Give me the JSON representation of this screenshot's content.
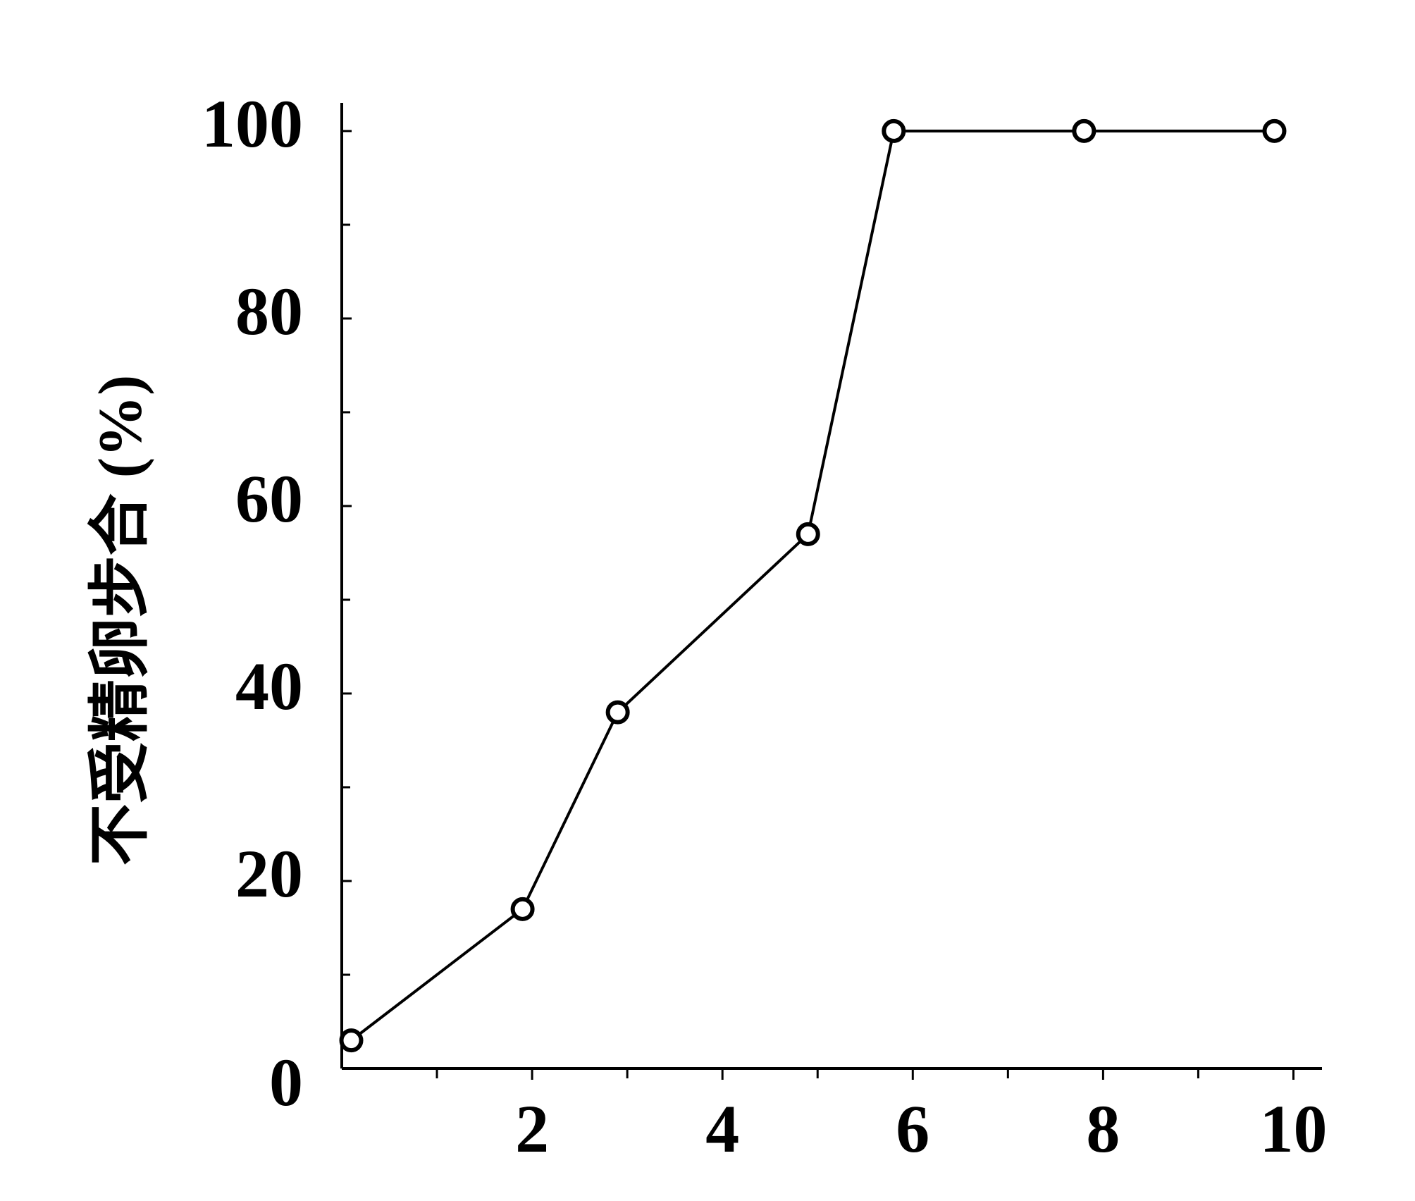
{
  "chart_data": {
    "type": "line",
    "y_label": "不受精卵步合 (%)",
    "x": [
      0.1,
      1.9,
      2.9,
      4.9,
      5.8,
      7.8,
      9.8
    ],
    "series": [
      {
        "color": "#000000",
        "values": [
          3,
          17,
          38,
          57,
          100,
          100,
          100
        ]
      }
    ],
    "xlim": [
      0,
      10.3
    ],
    "xticks": [
      2,
      4,
      6,
      8,
      10
    ],
    "xminor": [
      1,
      3,
      5,
      7,
      9
    ],
    "ylim": [
      0,
      103
    ],
    "yticks": [
      0,
      20,
      40,
      60,
      80,
      100
    ],
    "yminor": [
      10,
      30,
      50,
      70,
      90
    ],
    "grid": false
  }
}
